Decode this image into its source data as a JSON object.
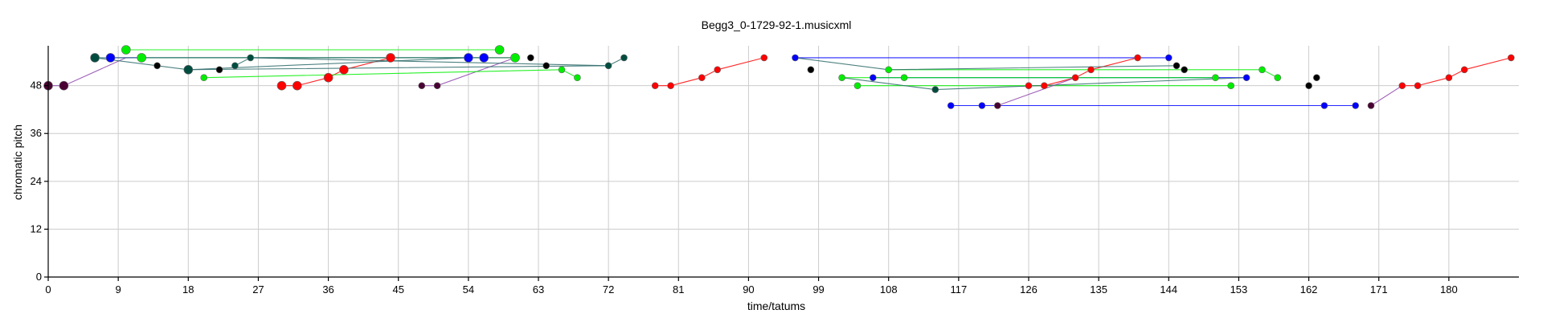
{
  "chart_data": {
    "type": "scatter",
    "title": "Begg3_0-1729-92-1.musicxml",
    "xlabel": "time/tatums",
    "ylabel": "chromatic pitch",
    "xlim": [
      0,
      189
    ],
    "ylim": [
      0,
      58
    ],
    "xticks": [
      0,
      9,
      18,
      27,
      36,
      45,
      54,
      63,
      72,
      81,
      90,
      99,
      108,
      117,
      126,
      135,
      144,
      153,
      162,
      171,
      180
    ],
    "yticks": [
      0,
      12,
      24,
      36,
      48
    ],
    "grid": true,
    "series": [
      {
        "color": "#ff0000",
        "size": "large",
        "points": [
          [
            30,
            48
          ],
          [
            32,
            48
          ],
          [
            36,
            50
          ],
          [
            38,
            52
          ],
          [
            44,
            55
          ]
        ]
      },
      {
        "color": "#ff0000",
        "size": "small",
        "points": [
          [
            78,
            48
          ],
          [
            80,
            48
          ],
          [
            84,
            50
          ],
          [
            86,
            52
          ],
          [
            92,
            55
          ],
          [
            126,
            48
          ],
          [
            128,
            48
          ],
          [
            132,
            50
          ],
          [
            134,
            52
          ],
          [
            140,
            55
          ],
          [
            174,
            48
          ],
          [
            176,
            48
          ],
          [
            180,
            50
          ],
          [
            182,
            52
          ],
          [
            188,
            55
          ]
        ]
      },
      {
        "color": "#0000ff",
        "size": "large",
        "points": [
          [
            8,
            55
          ],
          [
            54,
            55
          ],
          [
            56,
            55
          ]
        ]
      },
      {
        "color": "#0000ff",
        "size": "small",
        "points": [
          [
            96,
            55
          ],
          [
            144,
            55
          ],
          [
            106,
            50
          ],
          [
            154,
            50
          ],
          [
            116,
            43
          ],
          [
            120,
            43
          ],
          [
            164,
            43
          ],
          [
            168,
            43
          ]
        ]
      },
      {
        "color": "#00ee00",
        "size": "large",
        "points": [
          [
            10,
            57
          ],
          [
            12,
            55
          ],
          [
            58,
            57
          ],
          [
            60,
            55
          ]
        ]
      },
      {
        "color": "#00ee00",
        "size": "small",
        "points": [
          [
            20,
            50
          ],
          [
            66,
            52
          ],
          [
            68,
            50
          ],
          [
            102,
            50
          ],
          [
            104,
            48
          ],
          [
            108,
            52
          ],
          [
            110,
            50
          ],
          [
            150,
            50
          ],
          [
            152,
            48
          ],
          [
            156,
            52
          ],
          [
            158,
            50
          ]
        ]
      },
      {
        "color": "#004d40",
        "size": "large",
        "points": [
          [
            6,
            55
          ],
          [
            18,
            52
          ]
        ]
      },
      {
        "color": "#004d40",
        "size": "small",
        "points": [
          [
            24,
            53
          ],
          [
            26,
            55
          ],
          [
            72,
            53
          ],
          [
            74,
            55
          ],
          [
            114,
            47
          ]
        ]
      },
      {
        "color": "#000000",
        "size": "small",
        "points": [
          [
            14,
            53
          ],
          [
            22,
            52
          ],
          [
            62,
            55
          ],
          [
            64,
            53
          ],
          [
            98,
            52
          ],
          [
            145,
            53
          ],
          [
            146,
            52
          ],
          [
            162,
            48
          ],
          [
            163,
            50
          ]
        ]
      },
      {
        "color": "#4a0033",
        "size": "large",
        "points": [
          [
            0,
            48
          ],
          [
            2,
            48
          ]
        ]
      },
      {
        "color": "#4a0033",
        "size": "small",
        "points": [
          [
            48,
            48
          ],
          [
            50,
            48
          ],
          [
            122,
            43
          ],
          [
            170,
            43
          ]
        ]
      }
    ],
    "lines": [
      {
        "color": "#8e44ad",
        "points": [
          [
            0,
            48
          ],
          [
            2,
            48
          ],
          [
            10,
            55
          ],
          [
            60,
            55
          ]
        ]
      },
      {
        "color": "#8e44ad",
        "points": [
          [
            48,
            48
          ],
          [
            50,
            48
          ],
          [
            60,
            55
          ]
        ]
      },
      {
        "color": "#ff0000",
        "points": [
          [
            30,
            48
          ],
          [
            32,
            48
          ],
          [
            36,
            50
          ],
          [
            38,
            52
          ],
          [
            44,
            55
          ]
        ]
      },
      {
        "color": "#ff0000",
        "points": [
          [
            78,
            48
          ],
          [
            80,
            48
          ],
          [
            84,
            50
          ],
          [
            86,
            52
          ],
          [
            92,
            55
          ]
        ]
      },
      {
        "color": "#ff0000",
        "points": [
          [
            126,
            48
          ],
          [
            128,
            48
          ],
          [
            132,
            50
          ],
          [
            134,
            52
          ],
          [
            140,
            55
          ]
        ]
      },
      {
        "color": "#ff0000",
        "points": [
          [
            174,
            48
          ],
          [
            176,
            48
          ],
          [
            180,
            50
          ],
          [
            182,
            52
          ],
          [
            188,
            55
          ]
        ]
      },
      {
        "color": "#0000ff",
        "points": [
          [
            8,
            55
          ],
          [
            56,
            55
          ]
        ]
      },
      {
        "color": "#0000ff",
        "points": [
          [
            96,
            55
          ],
          [
            144,
            55
          ]
        ]
      },
      {
        "color": "#0000ff",
        "points": [
          [
            106,
            50
          ],
          [
            154,
            50
          ]
        ]
      },
      {
        "color": "#0000ff",
        "points": [
          [
            116,
            43
          ],
          [
            168,
            43
          ]
        ]
      },
      {
        "color": "#00ee00",
        "points": [
          [
            10,
            57
          ],
          [
            58,
            57
          ]
        ]
      },
      {
        "color": "#00ee00",
        "points": [
          [
            12,
            55
          ],
          [
            60,
            55
          ]
        ]
      },
      {
        "color": "#00ee00",
        "points": [
          [
            20,
            50
          ],
          [
            66,
            52
          ],
          [
            68,
            50
          ]
        ]
      },
      {
        "color": "#00ee00",
        "points": [
          [
            102,
            50
          ],
          [
            150,
            50
          ]
        ]
      },
      {
        "color": "#00ee00",
        "points": [
          [
            104,
            48
          ],
          [
            152,
            48
          ]
        ]
      },
      {
        "color": "#00ee00",
        "points": [
          [
            108,
            52
          ],
          [
            156,
            52
          ],
          [
            158,
            50
          ]
        ]
      },
      {
        "color": "#2f6b6b",
        "points": [
          [
            6,
            55
          ],
          [
            18,
            52
          ],
          [
            72,
            53
          ],
          [
            74,
            55
          ]
        ]
      },
      {
        "color": "#2f6b6b",
        "points": [
          [
            24,
            53
          ],
          [
            26,
            55
          ],
          [
            72,
            53
          ]
        ]
      },
      {
        "color": "#2f6b6b",
        "points": [
          [
            96,
            55
          ],
          [
            108,
            52
          ],
          [
            145,
            53
          ]
        ]
      },
      {
        "color": "#2f6b6b",
        "points": [
          [
            102,
            50
          ],
          [
            114,
            47
          ],
          [
            154,
            50
          ]
        ]
      },
      {
        "color": "#2f6b6b",
        "points": [
          [
            6,
            55
          ],
          [
            60,
            55
          ]
        ]
      },
      {
        "color": "#2f6b6b",
        "points": [
          [
            18,
            52
          ],
          [
            54,
            55
          ]
        ]
      },
      {
        "color": "#8e44ad",
        "points": [
          [
            122,
            43
          ],
          [
            132,
            50
          ]
        ]
      },
      {
        "color": "#8e44ad",
        "points": [
          [
            170,
            43
          ],
          [
            174,
            48
          ]
        ]
      }
    ]
  }
}
